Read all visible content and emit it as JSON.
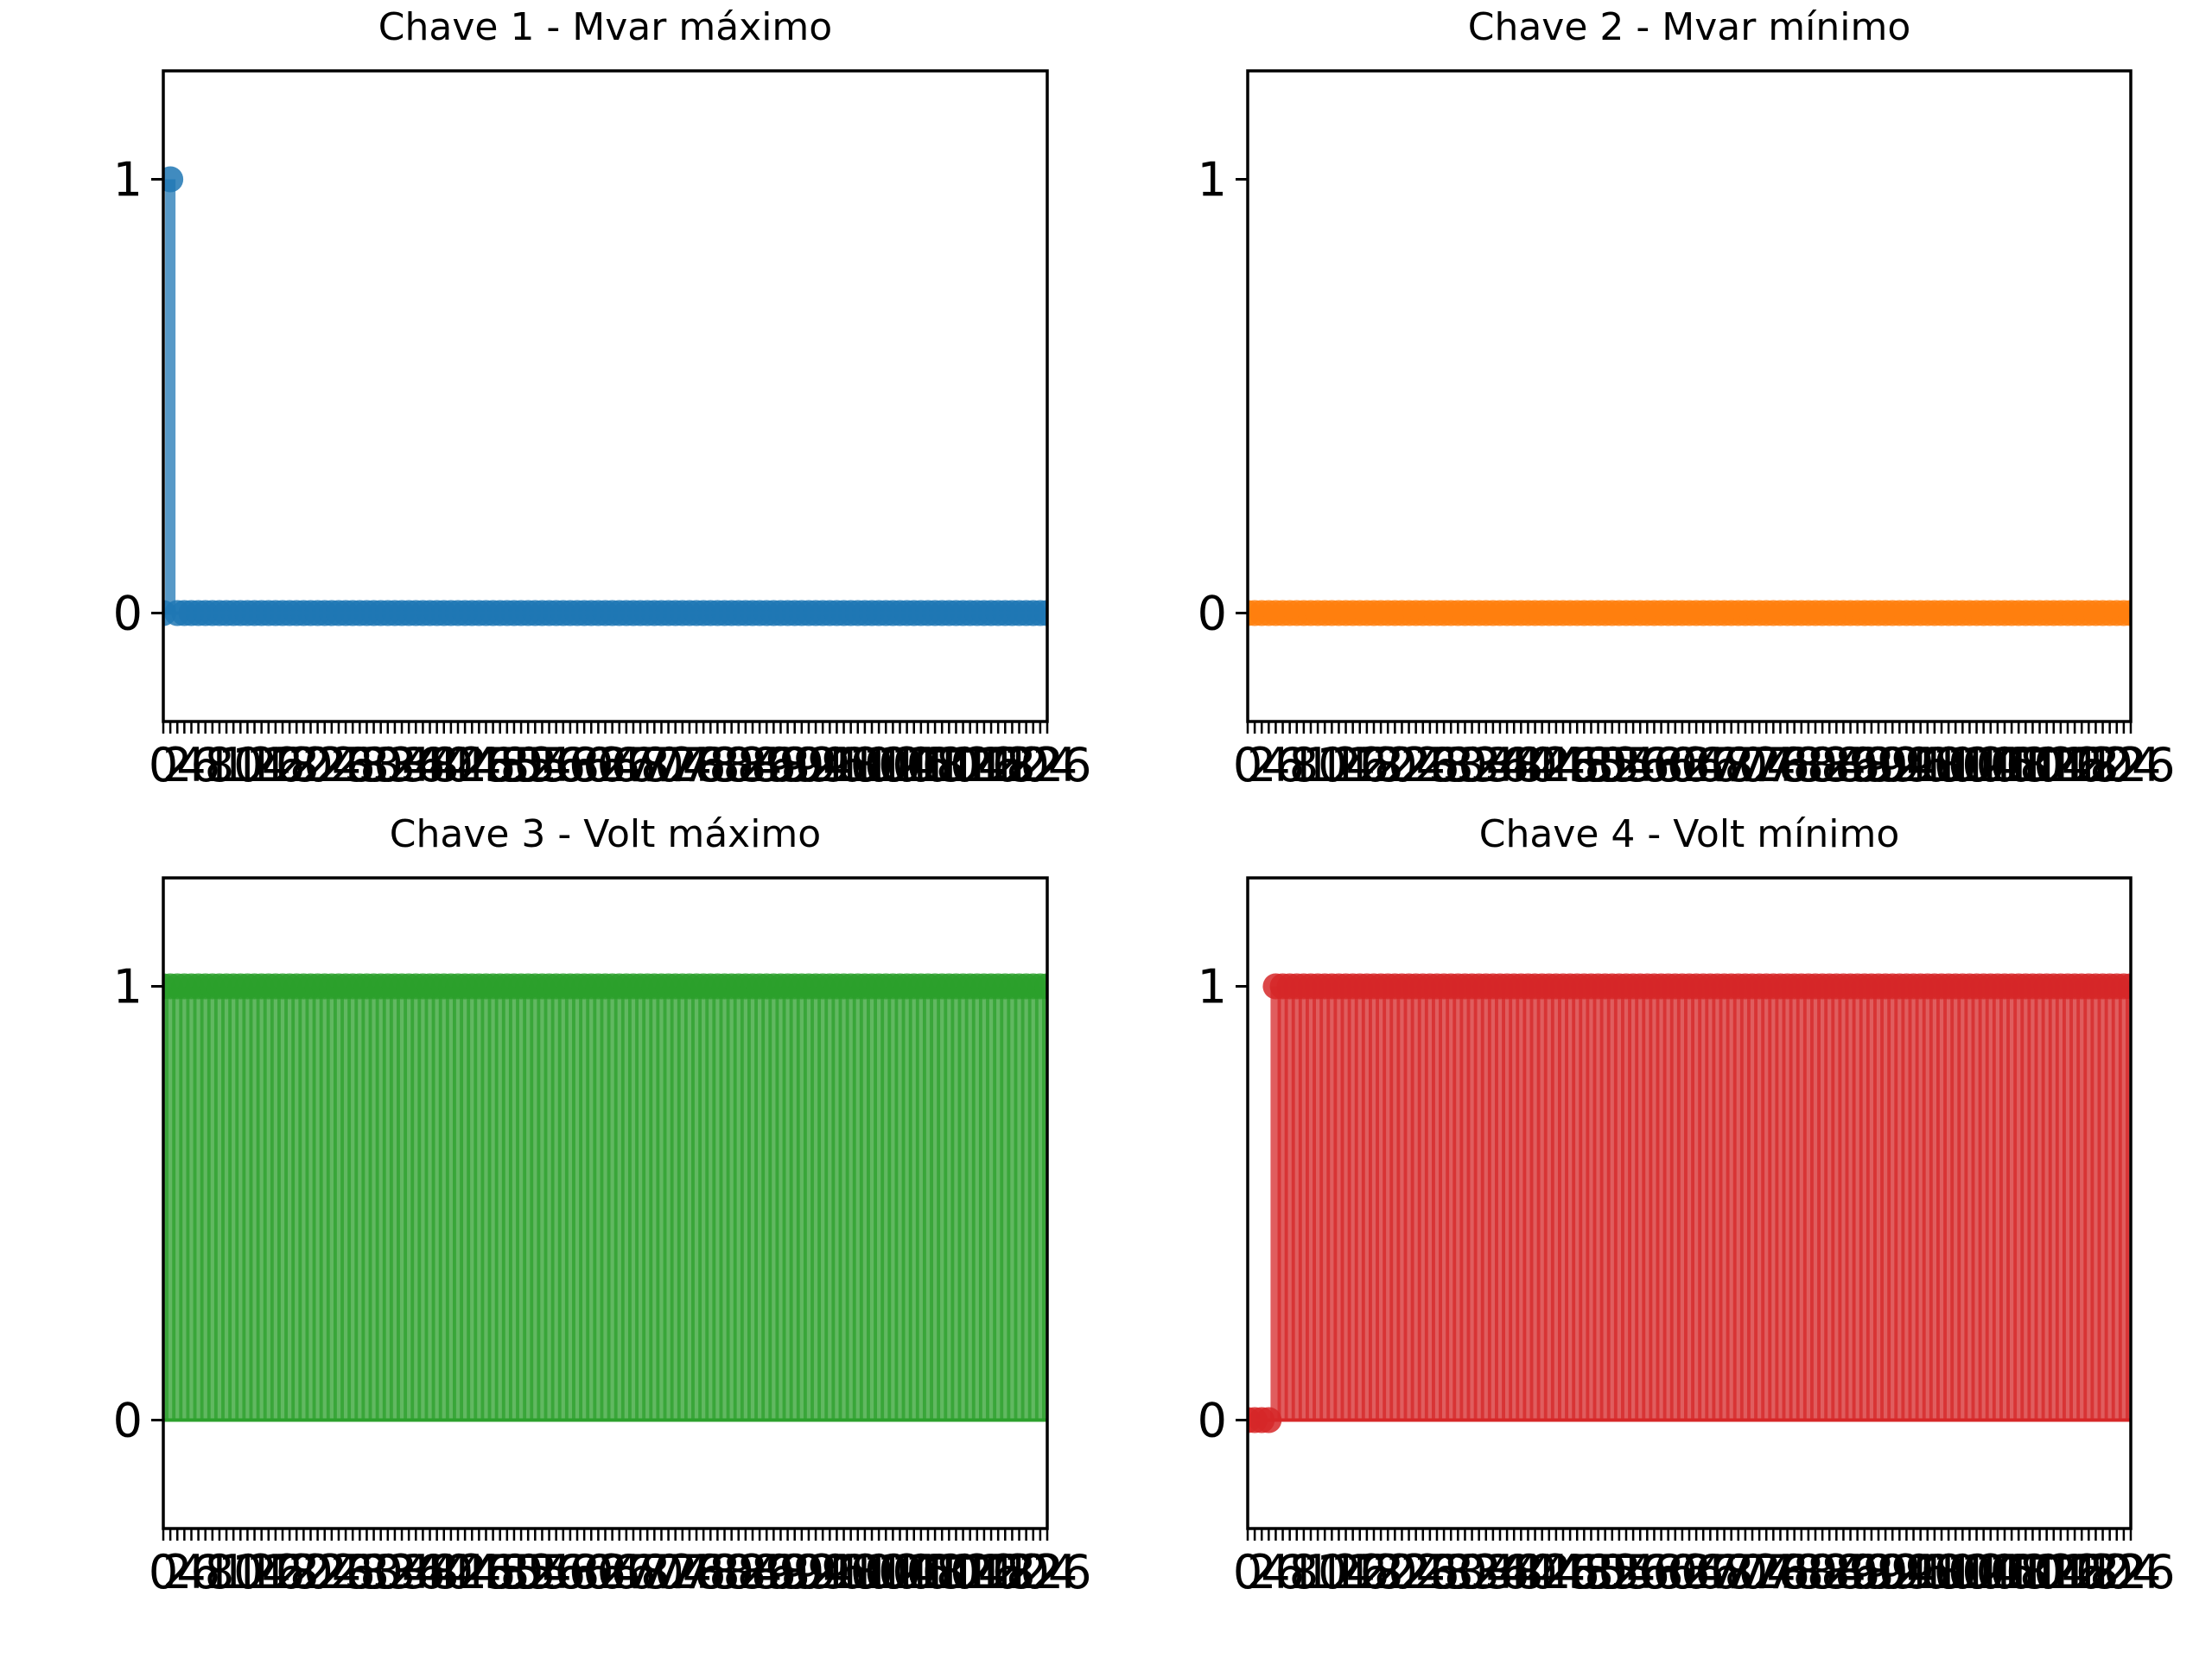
{
  "chart_data": [
    {
      "type": "stem",
      "title": "Chave 1 - Mvar máximo",
      "color": "#1f77b4",
      "x_tick_labels": [
        "0",
        "2",
        "4",
        "6",
        "8",
        "10",
        "12",
        "14",
        "16",
        "18",
        "20",
        "22",
        "24",
        "26",
        "28",
        "30",
        "32",
        "34",
        "36",
        "38",
        "40",
        "42",
        "44",
        "46",
        "48",
        "50",
        "52",
        "54",
        "56",
        "58",
        "60",
        "62",
        "64",
        "66",
        "68",
        "70",
        "72",
        "74",
        "76",
        "78",
        "80",
        "82",
        "84",
        "86",
        "88",
        "90",
        "92",
        "94",
        "96",
        "98",
        "100",
        "102",
        "104",
        "106",
        "108",
        "110",
        "112",
        "114",
        "116",
        "118",
        "120",
        "122",
        "124",
        "126"
      ],
      "xlim": [
        0,
        126
      ],
      "ylim": [
        -0.25,
        1.25
      ],
      "y_ticks": [
        0,
        1
      ],
      "y_tick_labels": [
        "0",
        "1"
      ],
      "x_start": 0,
      "x_end": 126,
      "nonzero_points": [
        {
          "x": 1,
          "y": 1
        }
      ],
      "default_value": 0
    },
    {
      "type": "stem",
      "title": "Chave 2 - Mvar mínimo",
      "color": "#ff7f0e",
      "x_tick_labels": [
        "0",
        "2",
        "4",
        "6",
        "8",
        "10",
        "12",
        "14",
        "16",
        "18",
        "20",
        "22",
        "24",
        "26",
        "28",
        "30",
        "32",
        "34",
        "36",
        "38",
        "40",
        "42",
        "44",
        "46",
        "48",
        "50",
        "52",
        "54",
        "56",
        "58",
        "60",
        "62",
        "64",
        "66",
        "68",
        "70",
        "72",
        "74",
        "76",
        "78",
        "80",
        "82",
        "84",
        "86",
        "88",
        "90",
        "92",
        "94",
        "96",
        "98",
        "100",
        "102",
        "104",
        "106",
        "108",
        "110",
        "112",
        "114",
        "116",
        "118",
        "120",
        "122",
        "124",
        "126"
      ],
      "xlim": [
        0,
        126
      ],
      "ylim": [
        -0.25,
        1.25
      ],
      "y_ticks": [
        0,
        1
      ],
      "y_tick_labels": [
        "0",
        "1"
      ],
      "x_start": 0,
      "x_end": 126,
      "nonzero_points": [],
      "default_value": 0
    },
    {
      "type": "stem",
      "title": "Chave 3 - Volt máximo",
      "color": "#2ca02c",
      "x_tick_labels": [
        "0",
        "2",
        "4",
        "6",
        "8",
        "10",
        "12",
        "14",
        "16",
        "18",
        "20",
        "22",
        "24",
        "26",
        "28",
        "30",
        "32",
        "34",
        "36",
        "38",
        "40",
        "42",
        "44",
        "46",
        "48",
        "50",
        "52",
        "54",
        "56",
        "58",
        "60",
        "62",
        "64",
        "66",
        "68",
        "70",
        "72",
        "74",
        "76",
        "78",
        "80",
        "82",
        "84",
        "86",
        "88",
        "90",
        "92",
        "94",
        "96",
        "98",
        "100",
        "102",
        "104",
        "106",
        "108",
        "110",
        "112",
        "114",
        "116",
        "118",
        "120",
        "122",
        "124",
        "126"
      ],
      "xlim": [
        0,
        126
      ],
      "ylim": [
        -0.25,
        1.25
      ],
      "y_ticks": [
        0,
        1
      ],
      "y_tick_labels": [
        "0",
        "1"
      ],
      "x_start": 0,
      "x_end": 126,
      "nonzero_points": [],
      "default_value": 1
    },
    {
      "type": "stem",
      "title": "Chave 4 - Volt mínimo",
      "color": "#d62728",
      "x_tick_labels": [
        "0",
        "2",
        "4",
        "6",
        "8",
        "10",
        "12",
        "14",
        "16",
        "18",
        "20",
        "22",
        "24",
        "26",
        "28",
        "30",
        "32",
        "34",
        "36",
        "38",
        "40",
        "42",
        "44",
        "46",
        "48",
        "50",
        "52",
        "54",
        "56",
        "58",
        "60",
        "62",
        "64",
        "66",
        "68",
        "70",
        "72",
        "74",
        "76",
        "78",
        "80",
        "82",
        "84",
        "86",
        "88",
        "90",
        "92",
        "94",
        "96",
        "98",
        "100",
        "102",
        "104",
        "106",
        "108",
        "110",
        "112",
        "114",
        "116",
        "118",
        "120",
        "122",
        "124",
        "126"
      ],
      "xlim": [
        0,
        126
      ],
      "ylim": [
        -0.25,
        1.25
      ],
      "y_ticks": [
        0,
        1
      ],
      "y_tick_labels": [
        "0",
        "1"
      ],
      "x_start": 0,
      "x_end": 126,
      "nonzero_points": [
        {
          "x": 0,
          "y": 0
        },
        {
          "x": 1,
          "y": 0
        },
        {
          "x": 2,
          "y": 0
        },
        {
          "x": 3,
          "y": 0
        }
      ],
      "default_value": 1
    }
  ]
}
